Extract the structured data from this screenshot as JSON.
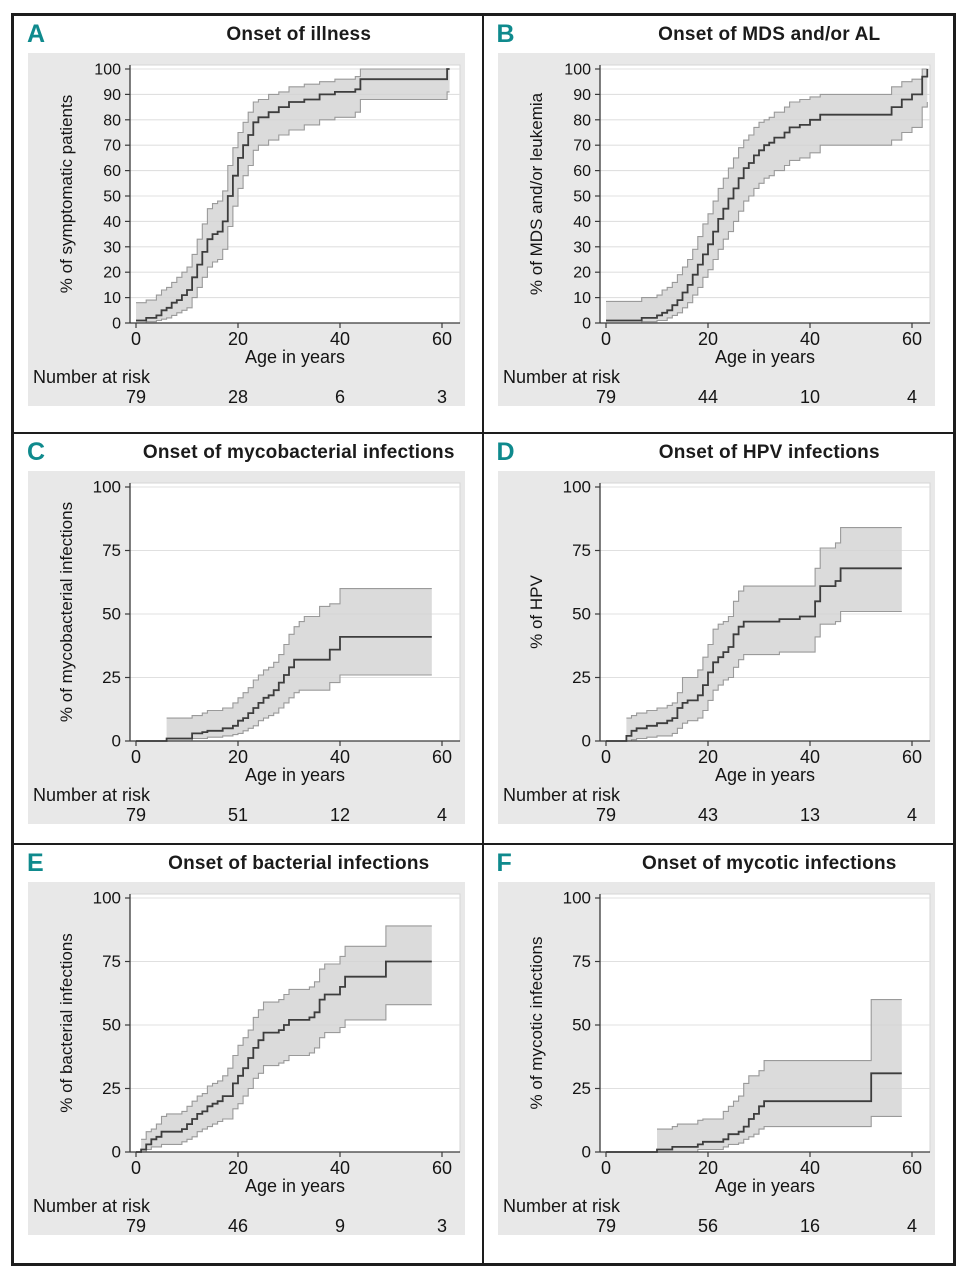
{
  "figure": {
    "x_axis_label": "Age in years",
    "number_at_risk_label": "Number at risk",
    "x_ticks": [
      0,
      20,
      40,
      60
    ]
  },
  "colors": {
    "accent_teal": "#0f8a8d",
    "panel_bg": "#e8e8e8",
    "plot_bg": "#ffffff",
    "grid_line": "#e0e0e0",
    "band_fill": "#d2d2d2",
    "band_edge": "#9a9a9a",
    "median_line": "#3d3d3d",
    "axis": "#3a3a3a",
    "text": "#141414",
    "frame": "#1d1d1d"
  },
  "chart_data": [
    {
      "type": "line",
      "letter": "A",
      "title": "Onset of illness",
      "ylabel": "% of symptomatic patients",
      "xlabel": "Age in years",
      "ylim": [
        0,
        100
      ],
      "xlim": [
        0,
        63
      ],
      "yticks": [
        0,
        10,
        20,
        30,
        40,
        50,
        60,
        70,
        80,
        90,
        100
      ],
      "xticks": [
        0,
        20,
        40,
        60
      ],
      "number_at_risk": [
        79,
        28,
        6,
        3
      ],
      "steps": [
        [
          0,
          1,
          0,
          8
        ],
        [
          2,
          2,
          0.5,
          9
        ],
        [
          4,
          3,
          1,
          11
        ],
        [
          5,
          5,
          1.5,
          13
        ],
        [
          6,
          6,
          2,
          14
        ],
        [
          7,
          8,
          3,
          16
        ],
        [
          8,
          9,
          4,
          18
        ],
        [
          9,
          11,
          5,
          20
        ],
        [
          10,
          13,
          6,
          22
        ],
        [
          11,
          18,
          10,
          27
        ],
        [
          12,
          23,
          14,
          33
        ],
        [
          13,
          28,
          18,
          39
        ],
        [
          14,
          33,
          22,
          45
        ],
        [
          15,
          35,
          24,
          47
        ],
        [
          16,
          36,
          25,
          48
        ],
        [
          17,
          40,
          29,
          52
        ],
        [
          18,
          50,
          38,
          62
        ],
        [
          19,
          58,
          46,
          69
        ],
        [
          20,
          65,
          53,
          75
        ],
        [
          21,
          70,
          58,
          79
        ],
        [
          22,
          74,
          62,
          83
        ],
        [
          23,
          79,
          68,
          87
        ],
        [
          24,
          81,
          70,
          88
        ],
        [
          26,
          83,
          72,
          90
        ],
        [
          28,
          85,
          74,
          91
        ],
        [
          30,
          87,
          76,
          93
        ],
        [
          33,
          88,
          78,
          94
        ],
        [
          36,
          90,
          80,
          95
        ],
        [
          39,
          91,
          81,
          96
        ],
        [
          43,
          92,
          83,
          97
        ],
        [
          44,
          96,
          88,
          100
        ],
        [
          60,
          96,
          88,
          100
        ],
        [
          61,
          100,
          91,
          100
        ],
        [
          61.5,
          100,
          91,
          100
        ]
      ]
    },
    {
      "type": "line",
      "letter": "B",
      "title": "Onset of MDS and/or AL",
      "ylabel": "% of MDS  and/or leukemia",
      "xlabel": "Age in years",
      "ylim": [
        0,
        100
      ],
      "xlim": [
        0,
        63
      ],
      "yticks": [
        0,
        10,
        20,
        30,
        40,
        50,
        60,
        70,
        80,
        90,
        100
      ],
      "xticks": [
        0,
        20,
        40,
        60
      ],
      "number_at_risk": [
        79,
        44,
        10,
        4
      ],
      "steps": [
        [
          0,
          1,
          0,
          8.5
        ],
        [
          7,
          2,
          0.5,
          10
        ],
        [
          10,
          3,
          1,
          11
        ],
        [
          11,
          4,
          1,
          13
        ],
        [
          12,
          5,
          2,
          14
        ],
        [
          13,
          7,
          3,
          16
        ],
        [
          14,
          9,
          4,
          19
        ],
        [
          15,
          12,
          6,
          22
        ],
        [
          16,
          15,
          8,
          25
        ],
        [
          17,
          19,
          11,
          29
        ],
        [
          18,
          23,
          14,
          34
        ],
        [
          19,
          27,
          18,
          39
        ],
        [
          20,
          31,
          21,
          43
        ],
        [
          21,
          36,
          25,
          48
        ],
        [
          22,
          41,
          29,
          53
        ],
        [
          23,
          45,
          33,
          57
        ],
        [
          24,
          49,
          36,
          61
        ],
        [
          25,
          53,
          40,
          65
        ],
        [
          26,
          57,
          44,
          69
        ],
        [
          27,
          61,
          48,
          72
        ],
        [
          28,
          63,
          50,
          74
        ],
        [
          29,
          66,
          53,
          77
        ],
        [
          30,
          68,
          55,
          79
        ],
        [
          31,
          70,
          57,
          80
        ],
        [
          32,
          71,
          58,
          81
        ],
        [
          33,
          73,
          60,
          83
        ],
        [
          35,
          75,
          62,
          85
        ],
        [
          36,
          77,
          64,
          87
        ],
        [
          38,
          78,
          65,
          88
        ],
        [
          40,
          80,
          67,
          89
        ],
        [
          42,
          82,
          70,
          90
        ],
        [
          55,
          82,
          70,
          90
        ],
        [
          56,
          85,
          72,
          93
        ],
        [
          58,
          88,
          75,
          95
        ],
        [
          60,
          90,
          77,
          96
        ],
        [
          62,
          97,
          85,
          100
        ],
        [
          63,
          100,
          87,
          100
        ]
      ]
    },
    {
      "type": "line",
      "letter": "C",
      "title": "Onset of mycobacterial infections",
      "ylabel": "% of mycobacterial infections",
      "xlabel": "Age in years",
      "ylim": [
        0,
        100
      ],
      "xlim": [
        0,
        63
      ],
      "yticks": [
        0,
        25,
        50,
        75,
        100
      ],
      "xticks": [
        0,
        20,
        40,
        60
      ],
      "number_at_risk": [
        79,
        51,
        12,
        4
      ],
      "steps": [
        [
          0,
          0,
          0,
          0
        ],
        [
          6,
          1,
          0,
          9
        ],
        [
          11,
          3,
          1,
          10
        ],
        [
          13,
          3.5,
          1,
          11
        ],
        [
          14,
          4,
          1.5,
          12
        ],
        [
          17,
          5,
          2,
          13
        ],
        [
          19,
          6,
          2.5,
          15
        ],
        [
          20,
          8,
          3,
          17
        ],
        [
          21,
          9,
          4,
          19
        ],
        [
          22,
          11,
          5,
          21
        ],
        [
          23,
          13,
          6,
          24
        ],
        [
          24,
          15,
          8,
          26
        ],
        [
          25,
          17,
          9,
          28
        ],
        [
          26,
          18,
          10,
          29
        ],
        [
          27,
          20,
          11,
          31
        ],
        [
          28,
          23,
          13,
          34
        ],
        [
          29,
          26,
          15,
          38
        ],
        [
          30,
          29,
          17,
          42
        ],
        [
          31,
          32,
          19,
          45
        ],
        [
          32,
          32,
          20,
          47
        ],
        [
          33,
          32,
          20,
          49
        ],
        [
          36,
          32,
          20,
          53
        ],
        [
          38,
          36,
          23,
          54
        ],
        [
          40,
          41,
          26,
          60
        ],
        [
          58,
          41,
          26,
          60
        ]
      ]
    },
    {
      "type": "line",
      "letter": "D",
      "title": "Onset of HPV infections",
      "ylabel": "% of HPV",
      "xlabel": "Age in years",
      "ylim": [
        0,
        100
      ],
      "xlim": [
        0,
        63
      ],
      "yticks": [
        0,
        25,
        50,
        75,
        100
      ],
      "xticks": [
        0,
        20,
        40,
        60
      ],
      "number_at_risk": [
        79,
        43,
        13,
        4
      ],
      "steps": [
        [
          0,
          0,
          0,
          0
        ],
        [
          4,
          2,
          0,
          9
        ],
        [
          5,
          4,
          0.5,
          10
        ],
        [
          6,
          5,
          1,
          11
        ],
        [
          8,
          6,
          1.5,
          12
        ],
        [
          10,
          7,
          2,
          13
        ],
        [
          12,
          8,
          2,
          14
        ],
        [
          13,
          9,
          3,
          15
        ],
        [
          14,
          13,
          5,
          19
        ],
        [
          15,
          15,
          7,
          25
        ],
        [
          16,
          16,
          8,
          25
        ],
        [
          18,
          18,
          9,
          28
        ],
        [
          19,
          22,
          12,
          33
        ],
        [
          20,
          27,
          16,
          38
        ],
        [
          21,
          31,
          20,
          44
        ],
        [
          22,
          33,
          22,
          46
        ],
        [
          23,
          35,
          24,
          47
        ],
        [
          24,
          37,
          25,
          49
        ],
        [
          25,
          42,
          29,
          55
        ],
        [
          26,
          45,
          32,
          59
        ],
        [
          27,
          47,
          34,
          61
        ],
        [
          34,
          48,
          35,
          61
        ],
        [
          38,
          49,
          35,
          61
        ],
        [
          41,
          55,
          41,
          68
        ],
        [
          42,
          61,
          46,
          76
        ],
        [
          45,
          63,
          47,
          78
        ],
        [
          46,
          68,
          51,
          84
        ],
        [
          58,
          68,
          51,
          84
        ]
      ]
    },
    {
      "type": "line",
      "letter": "E",
      "title": "Onset of bacterial infections",
      "ylabel": "% of bacterial infections",
      "xlabel": "Age in years",
      "ylim": [
        0,
        100
      ],
      "xlim": [
        0,
        63
      ],
      "yticks": [
        0,
        25,
        50,
        75,
        100
      ],
      "xticks": [
        0,
        20,
        40,
        60
      ],
      "number_at_risk": [
        79,
        46,
        9,
        3
      ],
      "steps": [
        [
          0,
          0,
          0,
          0
        ],
        [
          1,
          1,
          0,
          5
        ],
        [
          2,
          3,
          1,
          8
        ],
        [
          3,
          5,
          2,
          9
        ],
        [
          4,
          6,
          2,
          11
        ],
        [
          5,
          8,
          3,
          14
        ],
        [
          6,
          8,
          3,
          15
        ],
        [
          9,
          9,
          4,
          16
        ],
        [
          10,
          11,
          5,
          18
        ],
        [
          11,
          13,
          6,
          20
        ],
        [
          12,
          15,
          8,
          22
        ],
        [
          13,
          16,
          9,
          23
        ],
        [
          14,
          18,
          10,
          26
        ],
        [
          15,
          19,
          11,
          27
        ],
        [
          16,
          20,
          12,
          28
        ],
        [
          17,
          22,
          13,
          30
        ],
        [
          18,
          22,
          13,
          33
        ],
        [
          19,
          27,
          17,
          38
        ],
        [
          20,
          30,
          19,
          42
        ],
        [
          21,
          33,
          22,
          45
        ],
        [
          22,
          37,
          25,
          48
        ],
        [
          23,
          41,
          29,
          53
        ],
        [
          24,
          44,
          31,
          56
        ],
        [
          25,
          47,
          34,
          59
        ],
        [
          28,
          48,
          35,
          60
        ],
        [
          29,
          50,
          36,
          62
        ],
        [
          30,
          52,
          38,
          64
        ],
        [
          34,
          53,
          39,
          65
        ],
        [
          35,
          55,
          41,
          67
        ],
        [
          36,
          60,
          45,
          72
        ],
        [
          37,
          62,
          47,
          74
        ],
        [
          40,
          65,
          49,
          77
        ],
        [
          41,
          69,
          52,
          81
        ],
        [
          49,
          75,
          58,
          89
        ],
        [
          58,
          75,
          58,
          89
        ]
      ]
    },
    {
      "type": "line",
      "letter": "F",
      "title": "Onset of mycotic infections",
      "ylabel": "% of mycotic infections",
      "xlabel": "Age in years",
      "ylim": [
        0,
        100
      ],
      "xlim": [
        0,
        63
      ],
      "yticks": [
        0,
        25,
        50,
        75,
        100
      ],
      "xticks": [
        0,
        20,
        40,
        60
      ],
      "number_at_risk": [
        79,
        56,
        16,
        4
      ],
      "steps": [
        [
          0,
          0,
          0,
          0
        ],
        [
          10,
          1,
          0,
          9
        ],
        [
          13,
          2,
          0,
          10
        ],
        [
          14,
          2,
          0,
          11
        ],
        [
          18,
          3,
          1,
          12.5
        ],
        [
          19,
          4,
          1,
          13
        ],
        [
          23,
          5,
          2,
          16
        ],
        [
          24,
          7,
          3,
          18
        ],
        [
          25,
          7,
          3,
          20
        ],
        [
          26,
          8,
          3.5,
          22
        ],
        [
          27,
          10,
          5,
          27
        ],
        [
          28,
          13,
          6,
          30
        ],
        [
          29,
          15,
          7,
          30
        ],
        [
          30,
          18,
          9,
          32
        ],
        [
          31,
          20,
          10,
          36
        ],
        [
          51,
          20,
          10,
          36
        ],
        [
          52,
          31,
          14,
          60
        ],
        [
          58,
          31,
          14,
          60
        ]
      ]
    }
  ]
}
